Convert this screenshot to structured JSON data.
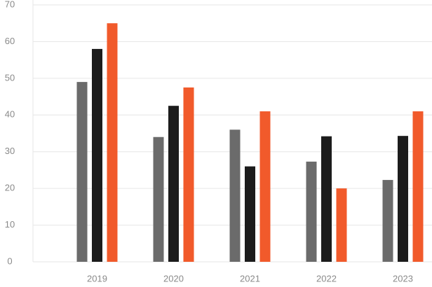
{
  "chart_data": {
    "type": "bar",
    "categories": [
      "2019",
      "2020",
      "2021",
      "2022",
      "2023"
    ],
    "series": [
      {
        "color": "#6b6b6b",
        "values": [
          49,
          34,
          36,
          27.3,
          22.3
        ]
      },
      {
        "color": "#1c1c1c",
        "values": [
          58,
          42.5,
          26,
          34.2,
          34.3
        ]
      },
      {
        "color": "#f15a2b",
        "values": [
          65,
          47.5,
          41,
          20,
          41
        ]
      }
    ],
    "ylim": [
      0,
      70
    ],
    "yticks": [
      0,
      10,
      20,
      30,
      40,
      50,
      60,
      70
    ],
    "grid": true
  }
}
